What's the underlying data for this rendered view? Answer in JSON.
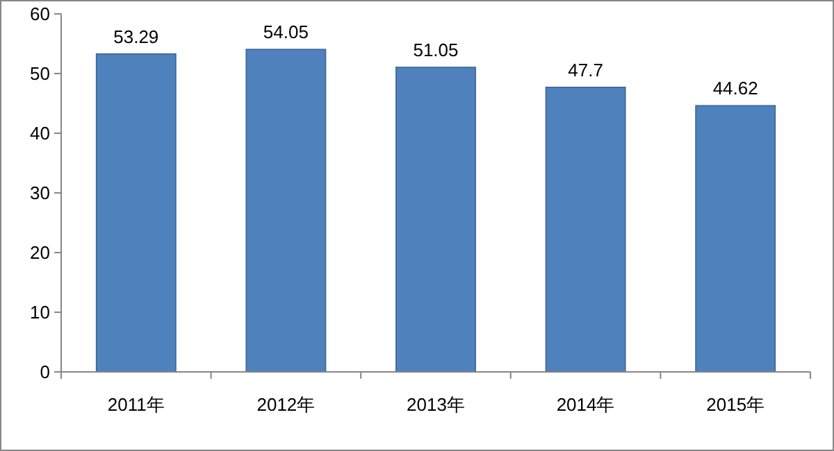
{
  "chart_data": {
    "type": "bar",
    "categories": [
      "2011年",
      "2012年",
      "2013年",
      "2014年",
      "2015年"
    ],
    "values": [
      53.29,
      54.05,
      51.05,
      47.7,
      44.62
    ],
    "color": "#4f81bd",
    "ylim": [
      0,
      60
    ],
    "yticks": [
      0,
      10,
      20,
      30,
      40,
      50,
      60
    ],
    "data_labels": true,
    "grid": false
  }
}
